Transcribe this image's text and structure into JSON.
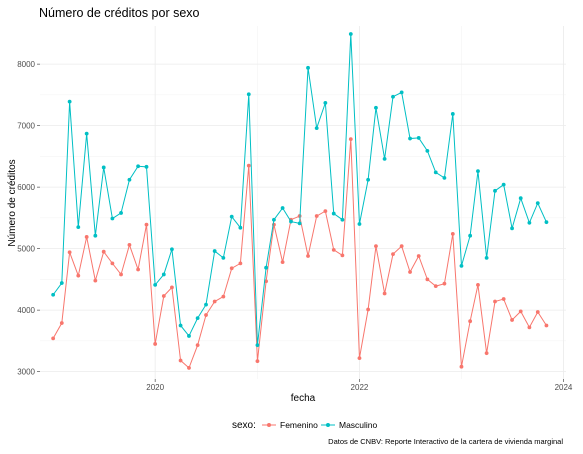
{
  "chart_data": {
    "type": "line",
    "title": "Número de créditos por sexo",
    "xlabel": "fecha",
    "ylabel": "Número de créditos",
    "caption": "Datos de CNBV: Reporte Interactivo de la cartera de vivienda marginal",
    "legend_title": "sexo:",
    "legend_position": "bottom",
    "grid": true,
    "x_ticks": [
      "2020",
      "2022",
      "2024"
    ],
    "y_ticks": [
      3000,
      4000,
      5000,
      6000,
      7000,
      8000
    ],
    "xlim": [
      "2018-11-15",
      "2024-01-10"
    ],
    "ylim": [
      2880,
      8620
    ],
    "x": [
      "2019-01",
      "2019-02",
      "2019-03",
      "2019-04",
      "2019-05",
      "2019-06",
      "2019-07",
      "2019-08",
      "2019-09",
      "2019-10",
      "2019-11",
      "2019-12",
      "2020-01",
      "2020-02",
      "2020-03",
      "2020-04",
      "2020-05",
      "2020-06",
      "2020-07",
      "2020-08",
      "2020-09",
      "2020-10",
      "2020-11",
      "2020-12",
      "2021-01",
      "2021-02",
      "2021-03",
      "2021-04",
      "2021-05",
      "2021-06",
      "2021-07",
      "2021-08",
      "2021-09",
      "2021-10",
      "2021-11",
      "2021-12",
      "2022-01",
      "2022-02",
      "2022-03",
      "2022-04",
      "2022-05",
      "2022-06",
      "2022-07",
      "2022-08",
      "2022-09",
      "2022-10",
      "2022-11",
      "2022-12",
      "2023-01",
      "2023-02",
      "2023-03",
      "2023-04",
      "2023-05",
      "2023-06",
      "2023-07",
      "2023-08",
      "2023-09",
      "2023-10",
      "2023-11"
    ],
    "series": [
      {
        "name": "Femenino",
        "color": "#f8766d",
        "values": [
          3540,
          3790,
          4940,
          4560,
          5190,
          4480,
          4950,
          4760,
          4580,
          5060,
          4660,
          5390,
          3450,
          4230,
          4370,
          3180,
          3060,
          3430,
          3920,
          4140,
          4220,
          4680,
          4760,
          6350,
          3170,
          4470,
          5390,
          4780,
          5470,
          5530,
          4880,
          5530,
          5610,
          4980,
          4890,
          6780,
          3220,
          4010,
          5040,
          4270,
          4910,
          5040,
          4620,
          4880,
          4500,
          4390,
          4430,
          5240,
          3080,
          3820,
          4410,
          3300,
          4140,
          4180,
          3840,
          3980,
          3720,
          3970,
          3750
        ]
      },
      {
        "name": "Masculino",
        "color": "#00bfc4",
        "values": [
          4250,
          4440,
          7390,
          5350,
          6870,
          5210,
          6320,
          5490,
          5580,
          6120,
          6340,
          6330,
          4410,
          4580,
          4990,
          3750,
          3580,
          3870,
          4090,
          4960,
          4850,
          5520,
          5340,
          7510,
          3430,
          4690,
          5470,
          5660,
          5440,
          5410,
          7940,
          6960,
          7370,
          5570,
          5470,
          8490,
          5400,
          6120,
          7290,
          6460,
          7470,
          7540,
          6790,
          6800,
          6590,
          6240,
          6150,
          7190,
          4720,
          5210,
          6260,
          4850,
          5940,
          6040,
          5330,
          5820,
          5420,
          5740,
          5430
        ]
      }
    ]
  }
}
